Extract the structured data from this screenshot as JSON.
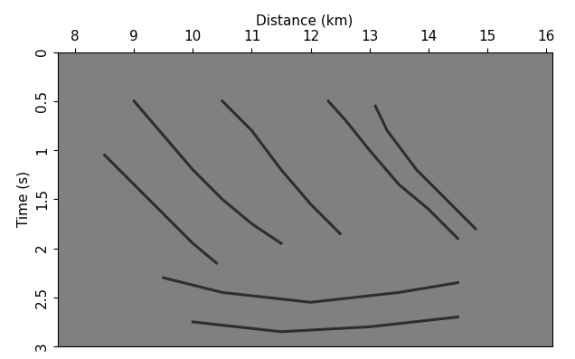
{
  "chart_data": {
    "type": "line",
    "x_label": "Distance (km)",
    "y_label": "Time (s)",
    "xlim": [
      7.7,
      16.1
    ],
    "ylim": [
      3.0,
      0
    ],
    "xticks": [
      8,
      9,
      10,
      11,
      12,
      13,
      14,
      15,
      16
    ],
    "yticks": [
      0,
      0.5,
      1,
      1.5,
      2,
      2.5,
      3
    ],
    "color": "#1a1a1a",
    "grid": false,
    "series": [
      {
        "x": [
          8.5,
          9.0,
          9.5,
          10.0,
          10.4
        ],
        "values": [
          1.05,
          1.35,
          1.65,
          1.95,
          2.15
        ]
      },
      {
        "x": [
          9.0,
          9.5,
          10.0,
          10.5,
          11.0,
          11.5
        ],
        "values": [
          0.5,
          0.85,
          1.2,
          1.5,
          1.75,
          1.95
        ]
      },
      {
        "x": [
          10.5,
          11.0,
          11.5,
          12.0,
          12.5
        ],
        "values": [
          0.5,
          0.8,
          1.2,
          1.55,
          1.85
        ]
      },
      {
        "x": [
          12.3,
          12.6,
          13.0,
          13.5,
          14.0,
          14.5
        ],
        "values": [
          0.5,
          0.7,
          1.0,
          1.35,
          1.6,
          1.9
        ]
      },
      {
        "x": [
          13.1,
          13.3,
          13.8,
          14.3,
          14.8
        ],
        "values": [
          0.55,
          0.8,
          1.2,
          1.5,
          1.8
        ]
      },
      {
        "x": [
          9.5,
          10.5,
          12.0,
          13.5,
          14.5
        ],
        "values": [
          2.3,
          2.45,
          2.55,
          2.45,
          2.35
        ]
      },
      {
        "x": [
          10.0,
          11.5,
          13.0,
          14.5
        ],
        "values": [
          2.75,
          2.85,
          2.8,
          2.7
        ]
      }
    ]
  }
}
